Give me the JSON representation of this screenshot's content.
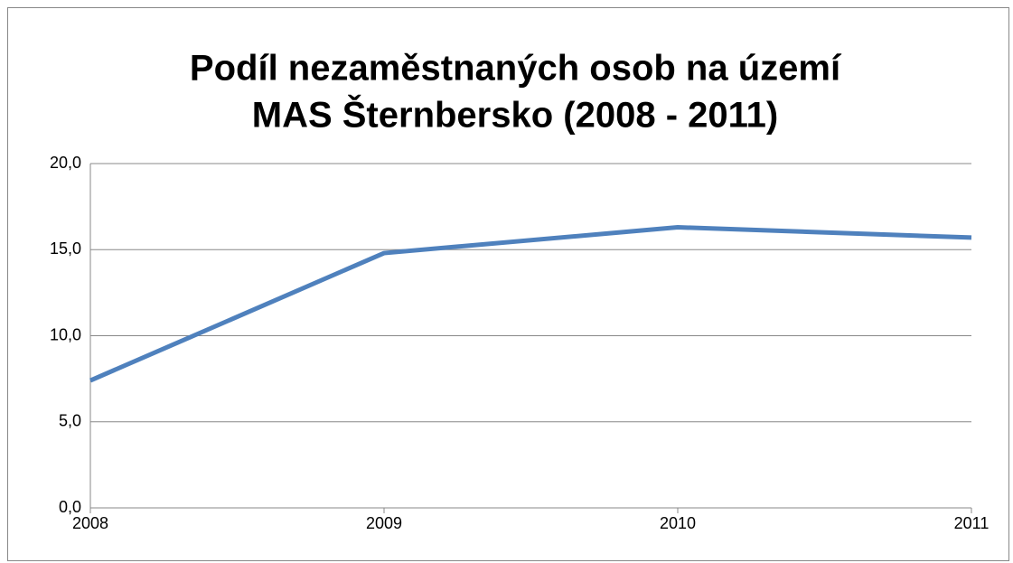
{
  "chart_data": {
    "type": "line",
    "title": [
      "Podíl nezaměstnaných osob na území",
      "MAS Šternbersko (2008 - 2011)"
    ],
    "x": [
      2008,
      2009,
      2010,
      2011
    ],
    "series": [
      {
        "color": "#4f81bd",
        "values": [
          7.4,
          14.8,
          16.3,
          15.7
        ]
      }
    ],
    "xlim": [
      2008,
      2011
    ],
    "xticks": [
      2008,
      2009,
      2010,
      2011
    ],
    "ylim": [
      0,
      20
    ],
    "yticks": [
      {
        "value": 0,
        "label": "0,0"
      },
      {
        "value": 5,
        "label": "5,0"
      },
      {
        "value": 10,
        "label": "10,0"
      },
      {
        "value": 15,
        "label": "15,0"
      },
      {
        "value": 20,
        "label": "20,0"
      }
    ],
    "grid": true
  }
}
